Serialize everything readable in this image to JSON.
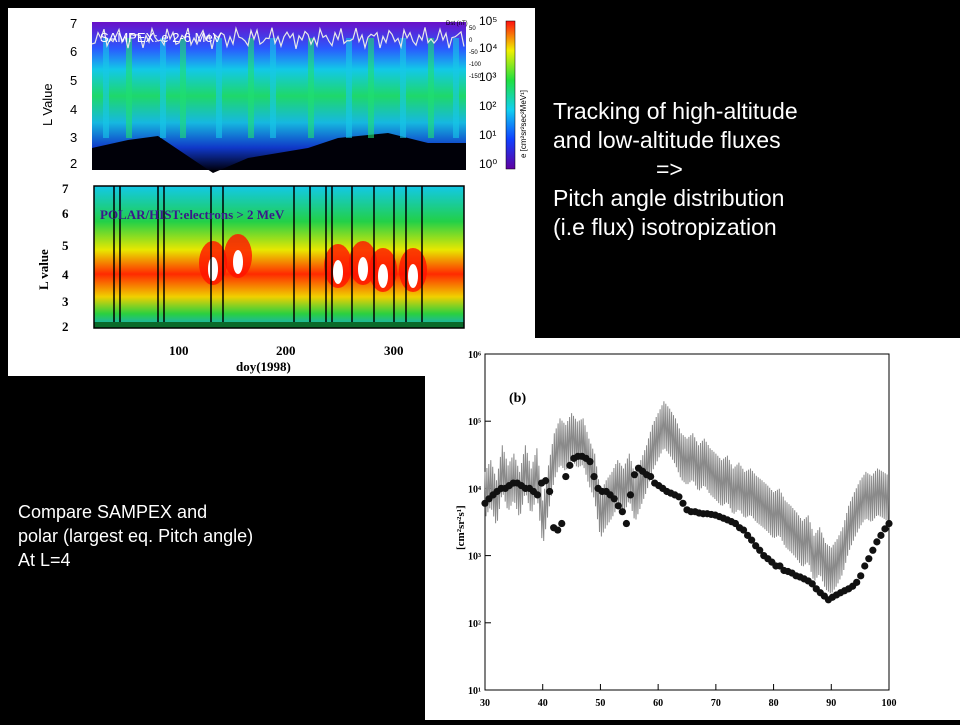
{
  "slide": {
    "right_text": [
      "Tracking of high-altitude",
      "and low-altitude fluxes",
      "=>",
      "Pitch angle distribution",
      "(i.e flux) isotropization"
    ],
    "left_text": [
      "Compare SAMPEX and",
      "polar  (largest eq. Pitch angle)",
      "At L=4"
    ]
  },
  "chart_data": [
    {
      "type": "heatmap",
      "title": "SAMPEX: e 2-6 MeV",
      "ylabel": "L Value",
      "y_ticks": [
        "2",
        "3",
        "4",
        "5",
        "6",
        "7"
      ],
      "ylim": [
        2,
        7
      ],
      "overlay_label": "Dst (nT)",
      "overlay_ticks": [
        "50",
        "0",
        "-50",
        "-100",
        "-150"
      ],
      "colorbar_label": "e [cm²sr²sec²MeV¹]",
      "colorbar_ticks": [
        "10⁰",
        "10¹",
        "10²",
        "10³",
        "10⁴",
        "10⁵"
      ],
      "colors": {
        "low": "#1a1acc",
        "mid": "#19d42a",
        "high": "#ff1a00",
        "bg": "#000000"
      }
    },
    {
      "type": "heatmap",
      "title": "POLAR/HIST:electrons > 2 MeV",
      "ylabel": "L value",
      "xlabel": "doy(1998)",
      "x_ticks": [
        "100",
        "200",
        "300"
      ],
      "y_ticks": [
        "2",
        "3",
        "4",
        "5",
        "6",
        "7"
      ],
      "ylim": [
        2,
        7
      ],
      "xlim": [
        0,
        365
      ]
    },
    {
      "type": "line",
      "title": "(b)",
      "ylabel": "[cm²sr²s¹]",
      "y_scale": "log",
      "ylim": [
        10,
        1000000
      ],
      "xlim": [
        30,
        100
      ],
      "x_ticks": [
        "30",
        "40",
        "50",
        "60",
        "70",
        "80",
        "90",
        "100"
      ],
      "y_ticks": [
        "10¹",
        "10²",
        "10³",
        "10⁴",
        "10⁵",
        "10⁶"
      ],
      "series": [
        {
          "style": "gray-line",
          "x": [
            30,
            31,
            32,
            33,
            34,
            35,
            36,
            37,
            38,
            39,
            40,
            41,
            42,
            43,
            44,
            45,
            46,
            47,
            48,
            49,
            50,
            51,
            52,
            53,
            54,
            55,
            56,
            57,
            58,
            59,
            60,
            61,
            62,
            63,
            64,
            65,
            66,
            67,
            68,
            69,
            70,
            71,
            72,
            73,
            74,
            75,
            76,
            77,
            78,
            79,
            80,
            81,
            82,
            83,
            84,
            85,
            86,
            87,
            88,
            89,
            90,
            91,
            92,
            93,
            94,
            95,
            96,
            97,
            98,
            99,
            100
          ],
          "y": [
            8000,
            12000,
            6000,
            20000,
            10000,
            15000,
            8000,
            20000,
            9000,
            18000,
            3000,
            10000,
            30000,
            50000,
            40000,
            60000,
            45000,
            50000,
            25000,
            15000,
            4000,
            6000,
            8000,
            12000,
            9000,
            15000,
            7000,
            12000,
            20000,
            40000,
            60000,
            90000,
            70000,
            50000,
            30000,
            25000,
            30000,
            20000,
            25000,
            18000,
            15000,
            12000,
            14000,
            9000,
            11000,
            8000,
            9000,
            7000,
            6000,
            5000,
            4000,
            4500,
            3000,
            2500,
            2000,
            1500,
            1800,
            900,
            1200,
            700,
            600,
            800,
            1200,
            2500,
            4000,
            6000,
            8000,
            7000,
            9000,
            8000,
            7000
          ]
        },
        {
          "style": "black-dots",
          "x": [
            30,
            30.7,
            31.4,
            32.1,
            32.8,
            33.5,
            34.2,
            34.9,
            35.6,
            36.3,
            37,
            37.7,
            38.4,
            39.1,
            39.8,
            40.5,
            41.2,
            41.9,
            42.6,
            43.3,
            44,
            44.7,
            45.4,
            46.1,
            46.8,
            47.5,
            48.2,
            48.9,
            49.6,
            50.3,
            51,
            51.7,
            52.4,
            53.1,
            53.8,
            54.5,
            55.2,
            55.9,
            56.6,
            57.3,
            58,
            58.7,
            59.4,
            60.1,
            60.8,
            61.5,
            62.2,
            62.9,
            63.6,
            64.3,
            65,
            65.7,
            66.4,
            67.1,
            67.8,
            68.5,
            69.2,
            69.9,
            70.6,
            71.3,
            72,
            72.7,
            73.4,
            74.1,
            74.8,
            75.5,
            76.2,
            76.9,
            77.6,
            78.3,
            79,
            79.7,
            80.4,
            81.1,
            81.8,
            82.5,
            83.2,
            83.9,
            84.6,
            85.3,
            86,
            86.7,
            87.4,
            88.1,
            88.8,
            89.5,
            90.2,
            90.9,
            91.6,
            92.3,
            93,
            93.7,
            94.4,
            95.1,
            95.8,
            96.5,
            97.2,
            97.9,
            98.6,
            99.3,
            100
          ],
          "y": [
            6000,
            7000,
            8000,
            9000,
            10000,
            10000,
            11000,
            12000,
            12000,
            11000,
            10000,
            10000,
            9000,
            8000,
            12000,
            13000,
            9000,
            2600,
            2400,
            3000,
            15000,
            22000,
            28000,
            30000,
            30000,
            28000,
            25000,
            15000,
            10000,
            9000,
            9000,
            8000,
            7000,
            5500,
            4500,
            3000,
            8000,
            16000,
            20000,
            18000,
            16000,
            15000,
            12000,
            11000,
            10000,
            9000,
            8500,
            8000,
            7500,
            6000,
            4800,
            4500,
            4500,
            4300,
            4200,
            4200,
            4100,
            4000,
            3800,
            3600,
            3400,
            3200,
            3000,
            2600,
            2400,
            2000,
            1700,
            1400,
            1200,
            1000,
            900,
            800,
            700,
            700,
            600,
            580,
            550,
            500,
            480,
            450,
            420,
            380,
            320,
            280,
            250,
            220,
            240,
            260,
            280,
            300,
            320,
            350,
            400,
            500,
            700,
            900,
            1200,
            1600,
            2000,
            2500,
            3000
          ]
        }
      ]
    }
  ]
}
